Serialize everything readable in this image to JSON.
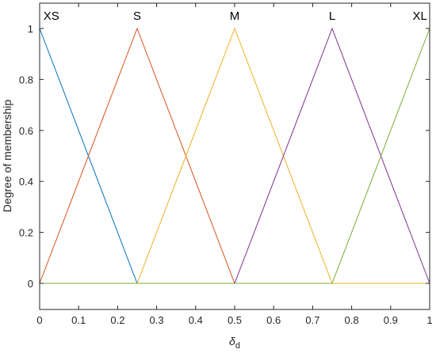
{
  "chart_data": {
    "type": "line",
    "title": "",
    "xlabel": "δd",
    "xlabel_main": "δ",
    "xlabel_sub": "d",
    "ylabel": "Degree of membership",
    "xlim": [
      0,
      1
    ],
    "ylim": [
      -0.05,
      1.05
    ],
    "xticks": [
      0,
      0.1,
      0.2,
      0.3,
      0.4,
      0.5,
      0.6,
      0.7,
      0.8,
      0.9,
      1
    ],
    "xtick_labels": [
      "0",
      "0.1",
      "0.2",
      "0.3",
      "0.4",
      "0.5",
      "0.6",
      "0.7",
      "0.8",
      "0.9",
      "1"
    ],
    "yticks": [
      0,
      0.2,
      0.4,
      0.6,
      0.8,
      1
    ],
    "ytick_labels": [
      "0",
      "0.2",
      "0.4",
      "0.6",
      "0.8",
      "1"
    ],
    "grid": false,
    "box": true,
    "series": [
      {
        "name": "XS",
        "color": "#0072BD",
        "x": [
          0,
          0.25,
          1
        ],
        "y": [
          1,
          0,
          0
        ],
        "label_x": 0.03
      },
      {
        "name": "S",
        "color": "#D95319",
        "x": [
          0,
          0.25,
          0.5,
          1
        ],
        "y": [
          0,
          1,
          0,
          0
        ],
        "label_x": 0.25
      },
      {
        "name": "M",
        "color": "#EDB120",
        "x": [
          0,
          0.25,
          0.5,
          0.75,
          1
        ],
        "y": [
          0,
          0,
          1,
          0,
          0
        ],
        "label_x": 0.5
      },
      {
        "name": "L",
        "color": "#7E2F8E",
        "x": [
          0,
          0.5,
          0.75,
          1
        ],
        "y": [
          0,
          0,
          1,
          0
        ],
        "label_x": 0.75
      },
      {
        "name": "XL",
        "color": "#77AC30",
        "x": [
          0,
          0.75,
          1
        ],
        "y": [
          0,
          0,
          1
        ],
        "label_x": 0.975
      }
    ]
  }
}
